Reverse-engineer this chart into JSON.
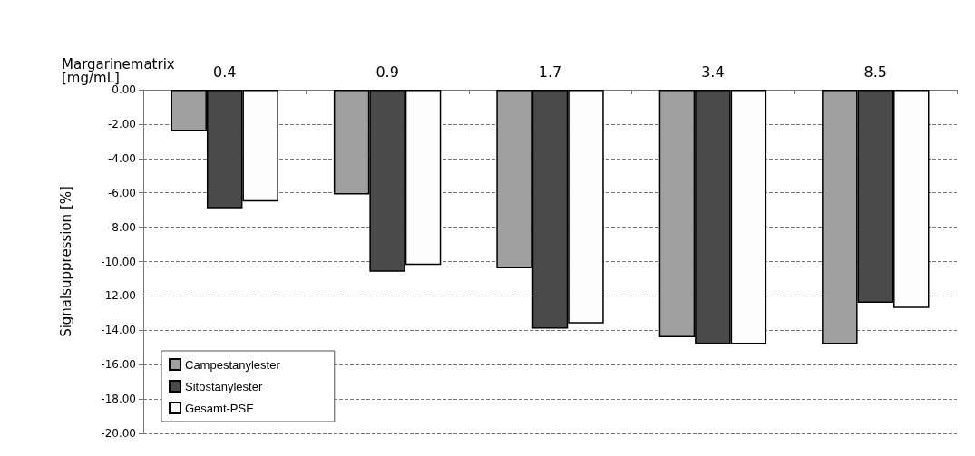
{
  "chart_data": {
    "type": "bar",
    "xlabel": "Margarinematrix\n[mg/mL]",
    "ylabel": "Signalsuppression [%]",
    "categories": [
      "0.4",
      "0.9",
      "1.7",
      "3.4",
      "8.5"
    ],
    "series": [
      {
        "name": "Campestanylester",
        "color": "#a0a0a0",
        "values": [
          -2.4,
          -6.1,
          -10.4,
          -14.4,
          -14.8
        ]
      },
      {
        "name": "Sitostanylester",
        "color": "#4a4a4a",
        "values": [
          -6.9,
          -10.6,
          -13.9,
          -14.8,
          -12.4
        ]
      },
      {
        "name": "Gesamt-PSE",
        "color": "#fcfcfc",
        "values": [
          -6.5,
          -10.2,
          -13.6,
          -14.8,
          -12.7
        ]
      }
    ],
    "ylim": [
      -20,
      0
    ],
    "yticks": [
      {
        "value": 0,
        "label": "0.00"
      },
      {
        "value": -2,
        "label": "-2.00"
      },
      {
        "value": -4,
        "label": "-4.00"
      },
      {
        "value": -6,
        "label": "-6.00"
      },
      {
        "value": -8,
        "label": "-8.00"
      },
      {
        "value": -10,
        "label": "-10.00"
      },
      {
        "value": -12,
        "label": "-12.00"
      },
      {
        "value": -14,
        "label": "-14.00"
      },
      {
        "value": -16,
        "label": "-16.00"
      },
      {
        "value": -18,
        "label": "-18.00"
      },
      {
        "value": -20,
        "label": "-20.00"
      }
    ],
    "grid": "y",
    "legend": "bottom left"
  }
}
